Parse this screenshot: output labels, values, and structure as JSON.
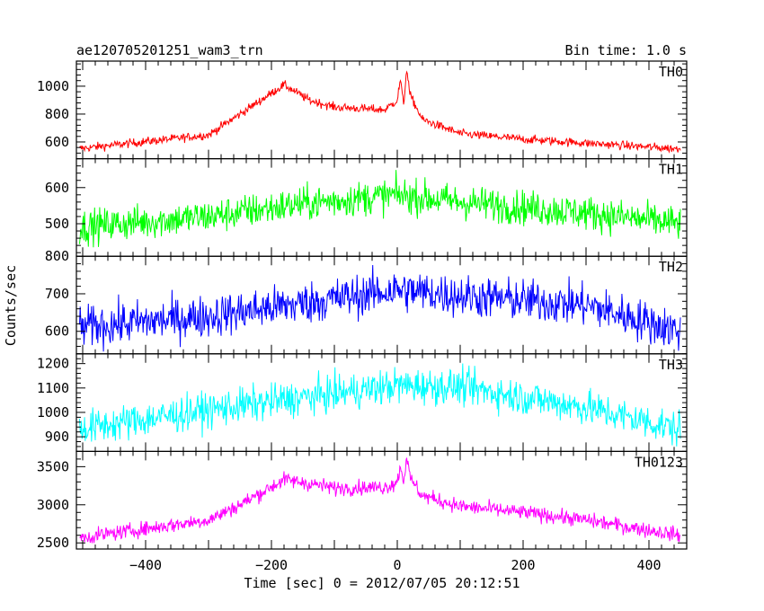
{
  "chart_data": {
    "type": "line",
    "title": "ae120705201251_wam3_trn",
    "subtitle": "Bin time: 1.0 s",
    "xlabel": "Time [sec] 0 = 2012/07/05 20:12:51",
    "ylabel": "Counts/sec",
    "xlim": [
      -510,
      460
    ],
    "x_ticks": [
      -400,
      -200,
      0,
      200,
      400
    ],
    "x_tick_labels": [
      "−400",
      "−200",
      "0",
      "200",
      "400"
    ],
    "grid": false,
    "panels": [
      {
        "name": "TH0",
        "color": "#ff0000",
        "ylim": [
          480,
          1180
        ],
        "y_ticks": [
          600,
          800,
          1000
        ],
        "profile": [
          [
            -510,
            550
          ],
          [
            -300,
            650
          ],
          [
            -250,
            800
          ],
          [
            -180,
            1010
          ],
          [
            -140,
            900
          ],
          [
            -100,
            850
          ],
          [
            -20,
            830
          ],
          [
            0,
            900
          ],
          [
            5,
            1050
          ],
          [
            10,
            860
          ],
          [
            15,
            1130
          ],
          [
            20,
            940
          ],
          [
            40,
            760
          ],
          [
            100,
            660
          ],
          [
            200,
            620
          ],
          [
            450,
            550
          ]
        ],
        "noise": 22
      },
      {
        "name": "TH1",
        "color": "#00ff00",
        "ylim": [
          410,
          680
        ],
        "y_ticks": [
          500,
          600
        ],
        "profile": [
          [
            -510,
            490
          ],
          [
            -300,
            520
          ],
          [
            -150,
            555
          ],
          [
            0,
            580
          ],
          [
            100,
            560
          ],
          [
            300,
            530
          ],
          [
            450,
            500
          ]
        ],
        "noise": 34
      },
      {
        "name": "TH2",
        "color": "#0000ff",
        "ylim": [
          540,
          800
        ],
        "y_ticks": [
          600,
          700,
          800
        ],
        "profile": [
          [
            -510,
            610
          ],
          [
            -300,
            640
          ],
          [
            -150,
            675
          ],
          [
            0,
            710
          ],
          [
            100,
            695
          ],
          [
            300,
            670
          ],
          [
            450,
            600
          ]
        ],
        "noise": 40
      },
      {
        "name": "TH3",
        "color": "#00ffff",
        "ylim": [
          840,
          1240
        ],
        "y_ticks": [
          900,
          1000,
          1100,
          1200
        ],
        "profile": [
          [
            -510,
            930
          ],
          [
            -300,
            1010
          ],
          [
            -150,
            1060
          ],
          [
            0,
            1110
          ],
          [
            100,
            1105
          ],
          [
            300,
            1020
          ],
          [
            450,
            930
          ]
        ],
        "noise": 52
      },
      {
        "name": "TH0123",
        "color": "#ff00ff",
        "ylim": [
          2420,
          3700
        ],
        "y_ticks": [
          2500,
          3000,
          3500
        ],
        "profile": [
          [
            -510,
            2560
          ],
          [
            -300,
            2800
          ],
          [
            -250,
            3000
          ],
          [
            -180,
            3330
          ],
          [
            -140,
            3280
          ],
          [
            -100,
            3220
          ],
          [
            -20,
            3230
          ],
          [
            0,
            3300
          ],
          [
            5,
            3520
          ],
          [
            10,
            3300
          ],
          [
            15,
            3650
          ],
          [
            20,
            3350
          ],
          [
            40,
            3120
          ],
          [
            100,
            2980
          ],
          [
            200,
            2900
          ],
          [
            300,
            2800
          ],
          [
            450,
            2600
          ]
        ],
        "noise": 70
      }
    ]
  }
}
